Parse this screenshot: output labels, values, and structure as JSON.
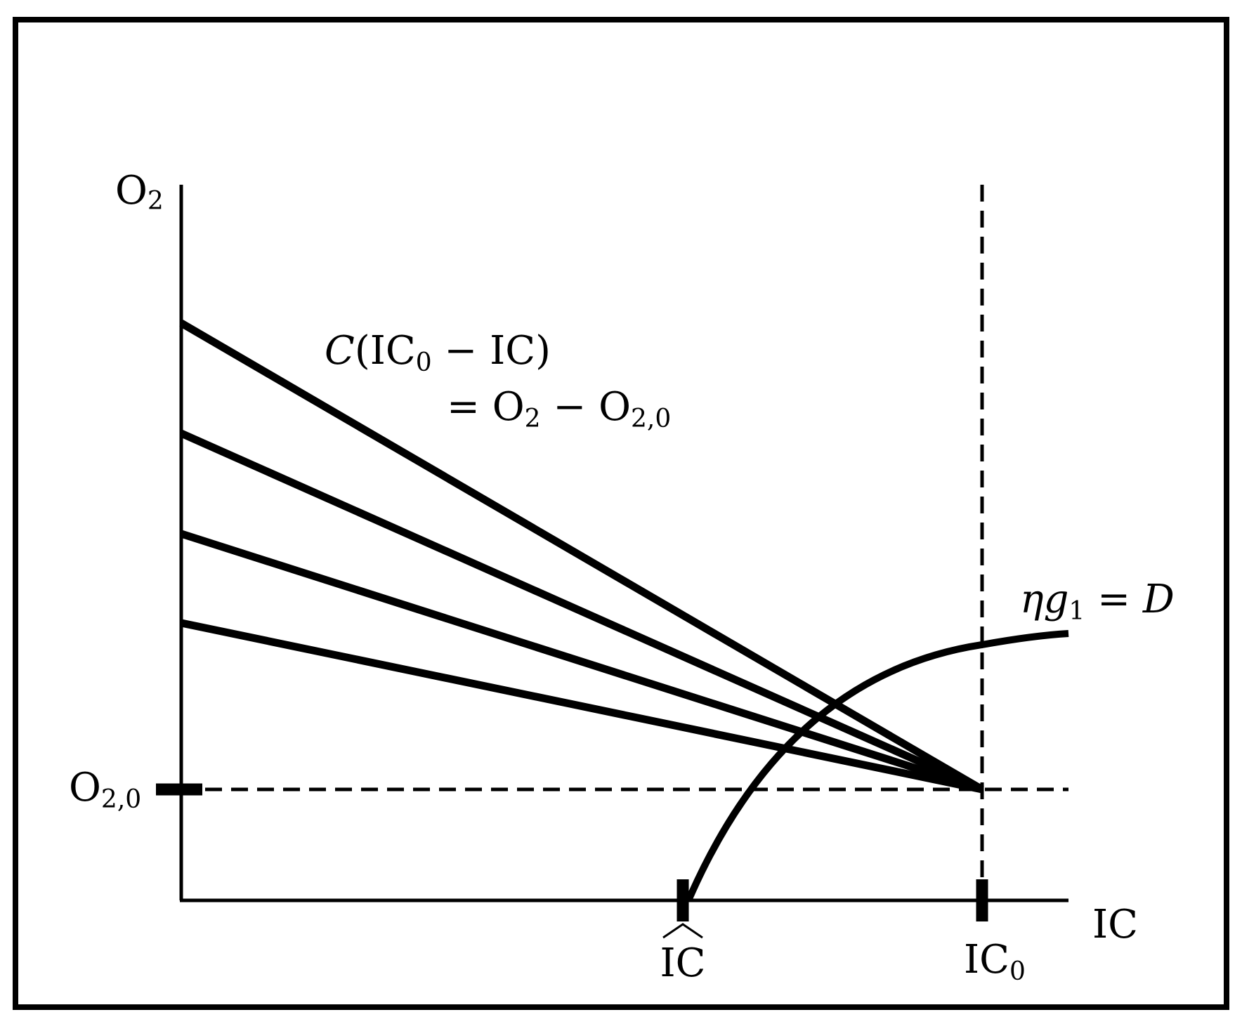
{
  "axes": {
    "y_label": "O",
    "y_label_sub": "2",
    "x_label": "IC"
  },
  "ticks": {
    "o20_main": "O",
    "o20_sub": "2,0",
    "ichat_label": "IC",
    "ic0_main": "IC",
    "ic0_sub": "0"
  },
  "annotations": {
    "cost_line1_func": "C",
    "cost_line1_open": "(IC",
    "cost_line1_sub": "0",
    "cost_line1_rest": " − IC)",
    "cost_line2_eq": "= O",
    "cost_line2_sub1": "2",
    "cost_line2_minus": " − O",
    "cost_line2_sub2": "2,0",
    "curve_eta": "η",
    "curve_g": "g",
    "curve_g_sub": "1",
    "curve_eq": " = ",
    "curve_D": "D"
  },
  "curves": {
    "cost_rays": {
      "count": 4,
      "common_point": "(IC₀, O₂,₀)"
    },
    "eta_g1_curve": {
      "starts_at": "IĈ",
      "shape": "concave, increasing"
    }
  }
}
